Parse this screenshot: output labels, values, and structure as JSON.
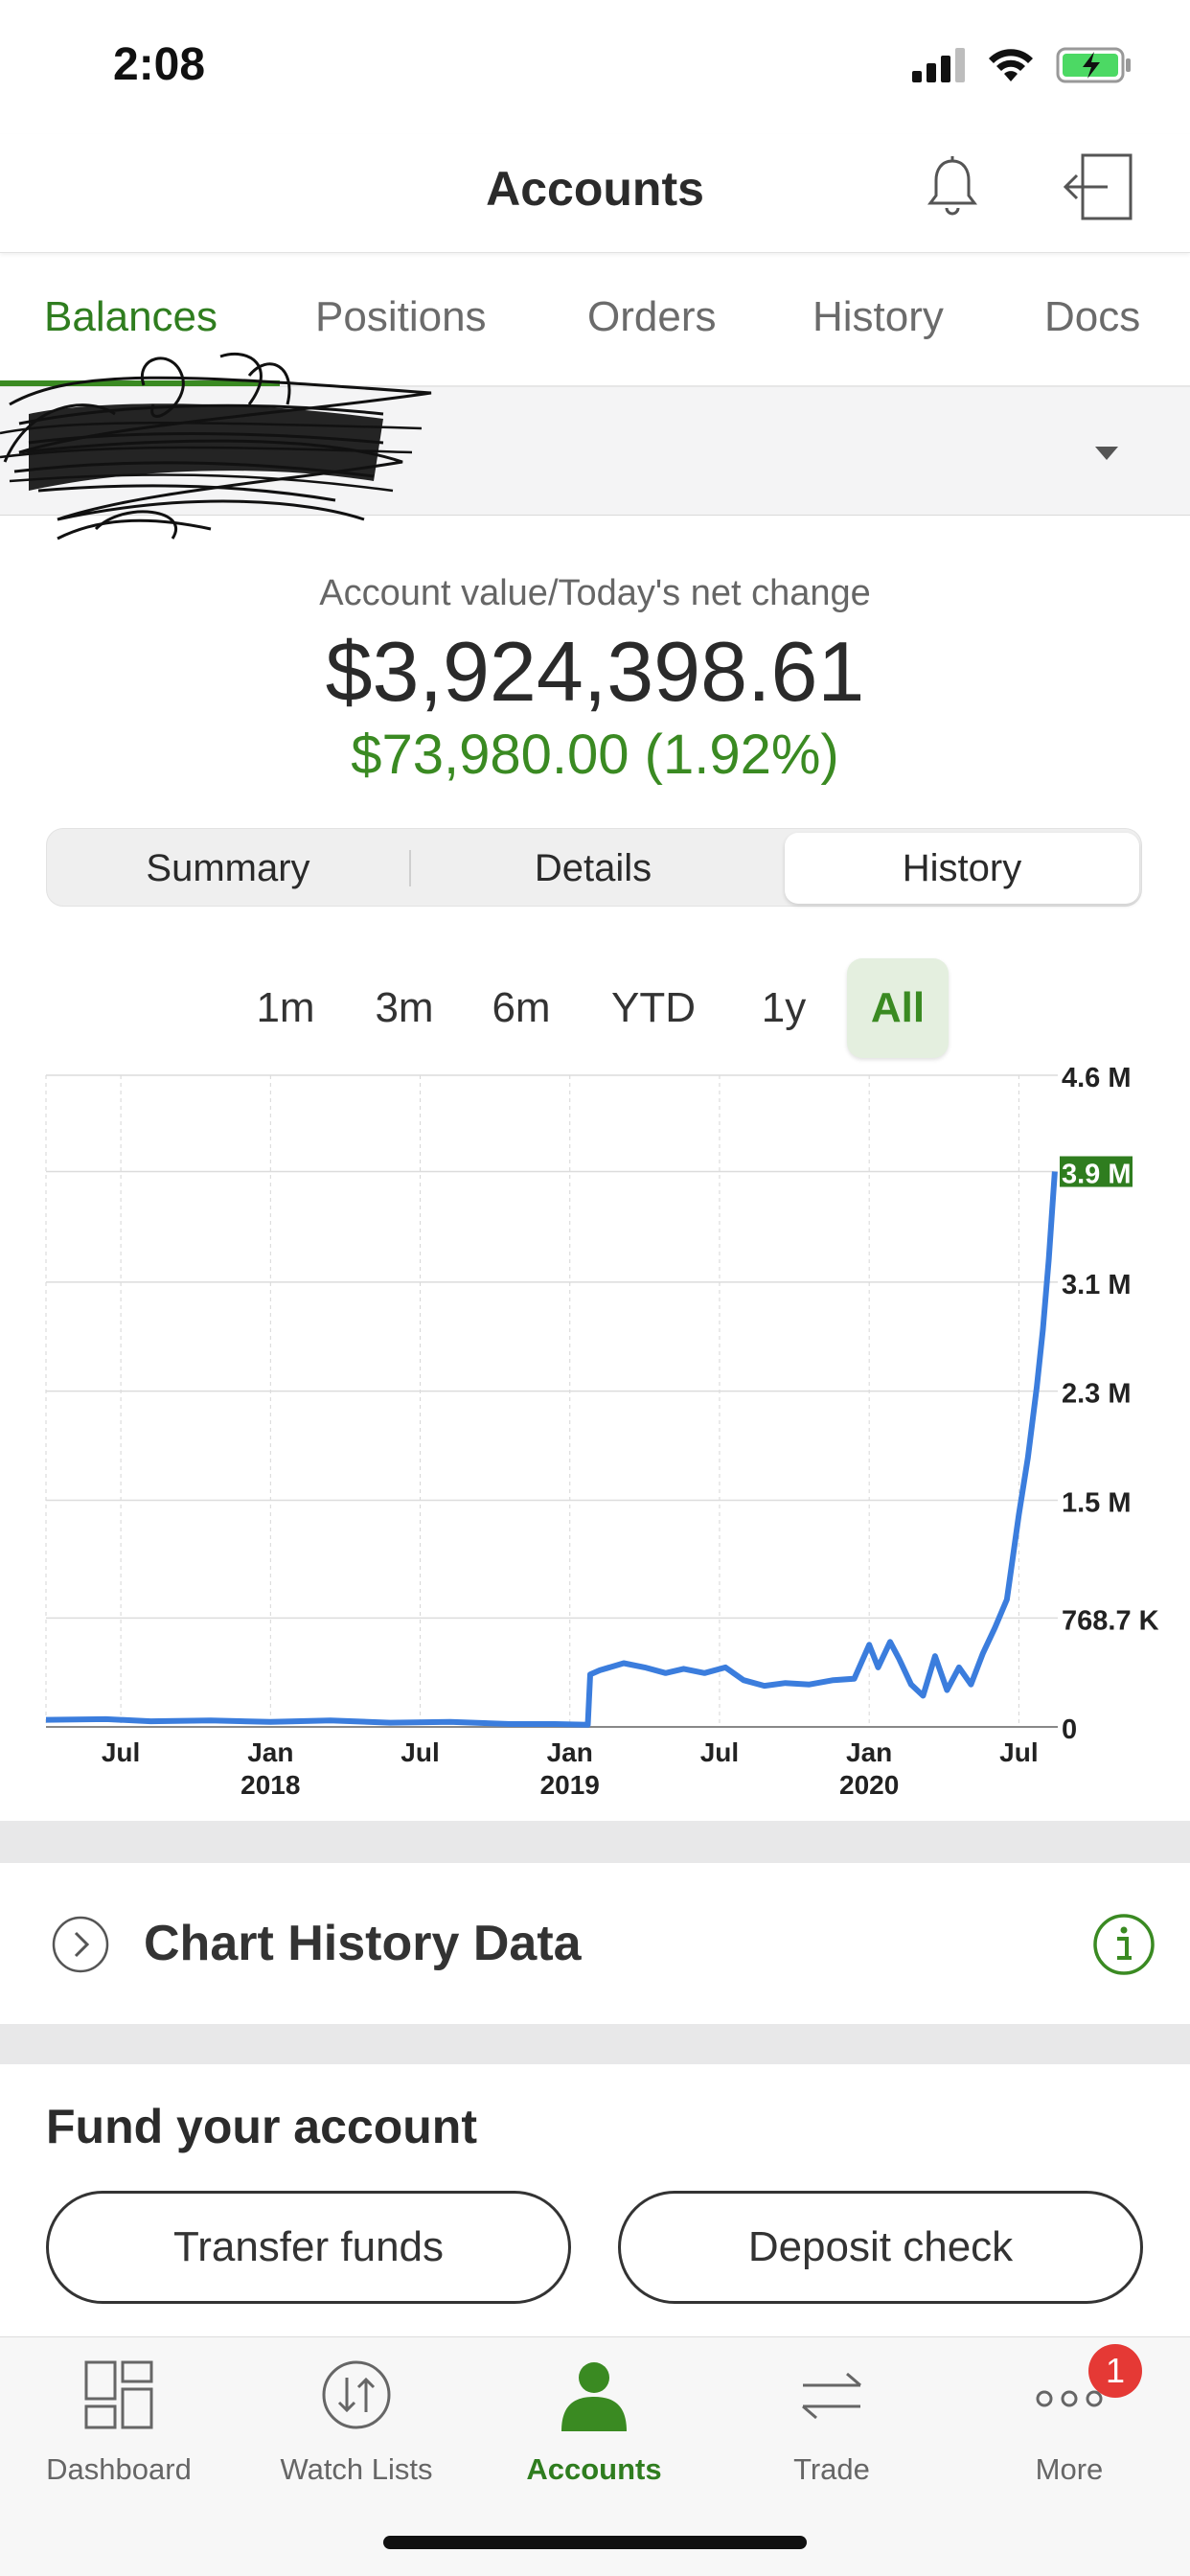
{
  "status_bar": {
    "time": "2:08"
  },
  "header": {
    "title": "Accounts"
  },
  "tabs": [
    {
      "label": "Balances",
      "active": true
    },
    {
      "label": "Positions",
      "active": false
    },
    {
      "label": "Orders",
      "active": false
    },
    {
      "label": "History",
      "active": false
    },
    {
      "label": "Docs",
      "active": false
    }
  ],
  "account_value": {
    "label": "Account value/Today's net change",
    "amount": "$3,924,398.61",
    "change": "$73,980.00 (1.92%)"
  },
  "segments": [
    {
      "label": "Summary",
      "active": false
    },
    {
      "label": "Details",
      "active": false
    },
    {
      "label": "History",
      "active": true
    }
  ],
  "ranges": [
    {
      "label": "1m",
      "active": false
    },
    {
      "label": "3m",
      "active": false
    },
    {
      "label": "6m",
      "active": false
    },
    {
      "label": "YTD",
      "active": false
    },
    {
      "label": "1y",
      "active": false
    },
    {
      "label": "All",
      "active": true
    }
  ],
  "chart_data": {
    "type": "line",
    "title": "",
    "xlabel": "",
    "ylabel": "",
    "x_ticks": [
      {
        "line1": "Jul",
        "line2": "",
        "x": 2017.5
      },
      {
        "line1": "Jan",
        "line2": "2018",
        "x": 2018.0
      },
      {
        "line1": "Jul",
        "line2": "",
        "x": 2018.5
      },
      {
        "line1": "Jan",
        "line2": "2019",
        "x": 2019.0
      },
      {
        "line1": "Jul",
        "line2": "",
        "x": 2019.5
      },
      {
        "line1": "Jan",
        "line2": "2020",
        "x": 2020.0
      },
      {
        "line1": "Jul",
        "line2": "",
        "x": 2020.5
      }
    ],
    "y_ticks": [
      {
        "label": "4.6 M",
        "value": 4600000
      },
      {
        "label": "3.9 M",
        "value": 3920000,
        "highlight": true
      },
      {
        "label": "3.1 M",
        "value": 3140000
      },
      {
        "label": "2.3 M",
        "value": 2370000
      },
      {
        "label": "1.5 M",
        "value": 1600000
      },
      {
        "label": "768.7 K",
        "value": 768700
      },
      {
        "label": "0",
        "value": 0
      }
    ],
    "xlim": [
      2017.25,
      2020.63
    ],
    "ylim": [
      0,
      4600000
    ],
    "grid": true,
    "series": [
      {
        "color": "#3b7ddd",
        "x": [
          2017.25,
          2017.45,
          2017.6,
          2017.8,
          2018.0,
          2018.2,
          2018.4,
          2018.6,
          2018.8,
          2018.95,
          2019.06,
          2019.068,
          2019.1,
          2019.18,
          2019.25,
          2019.32,
          2019.38,
          2019.45,
          2019.52,
          2019.58,
          2019.65,
          2019.72,
          2019.8,
          2019.88,
          2019.95,
          2020.0,
          2020.03,
          2020.07,
          2020.1,
          2020.14,
          2020.18,
          2020.22,
          2020.26,
          2020.3,
          2020.34,
          2020.38,
          2020.42,
          2020.46,
          2020.5,
          2020.53,
          2020.56,
          2020.58,
          2020.6,
          2020.62
        ],
        "y": [
          50000,
          55000,
          40000,
          45000,
          35000,
          45000,
          30000,
          35000,
          20000,
          20000,
          15000,
          370000,
          400000,
          450000,
          420000,
          380000,
          410000,
          380000,
          420000,
          330000,
          290000,
          310000,
          300000,
          330000,
          340000,
          580000,
          420000,
          600000,
          480000,
          300000,
          220000,
          500000,
          260000,
          420000,
          300000,
          520000,
          700000,
          900000,
          1500000,
          1900000,
          2400000,
          2800000,
          3300000,
          3920000
        ]
      }
    ]
  },
  "chart_history": {
    "label": "Chart History Data"
  },
  "fund": {
    "title": "Fund your account",
    "transfer_label": "Transfer funds",
    "deposit_label": "Deposit check"
  },
  "bottom_nav": {
    "items": [
      {
        "label": "Dashboard",
        "icon": "dashboard-icon"
      },
      {
        "label": "Watch Lists",
        "icon": "watch-lists-icon"
      },
      {
        "label": "Accounts",
        "icon": "accounts-icon",
        "active": true
      },
      {
        "label": "Trade",
        "icon": "trade-icon"
      },
      {
        "label": "More",
        "icon": "more-icon"
      }
    ],
    "badge": "1"
  },
  "colors": {
    "brand_green": "#3a8a22",
    "line_blue": "#3b7ddd"
  }
}
